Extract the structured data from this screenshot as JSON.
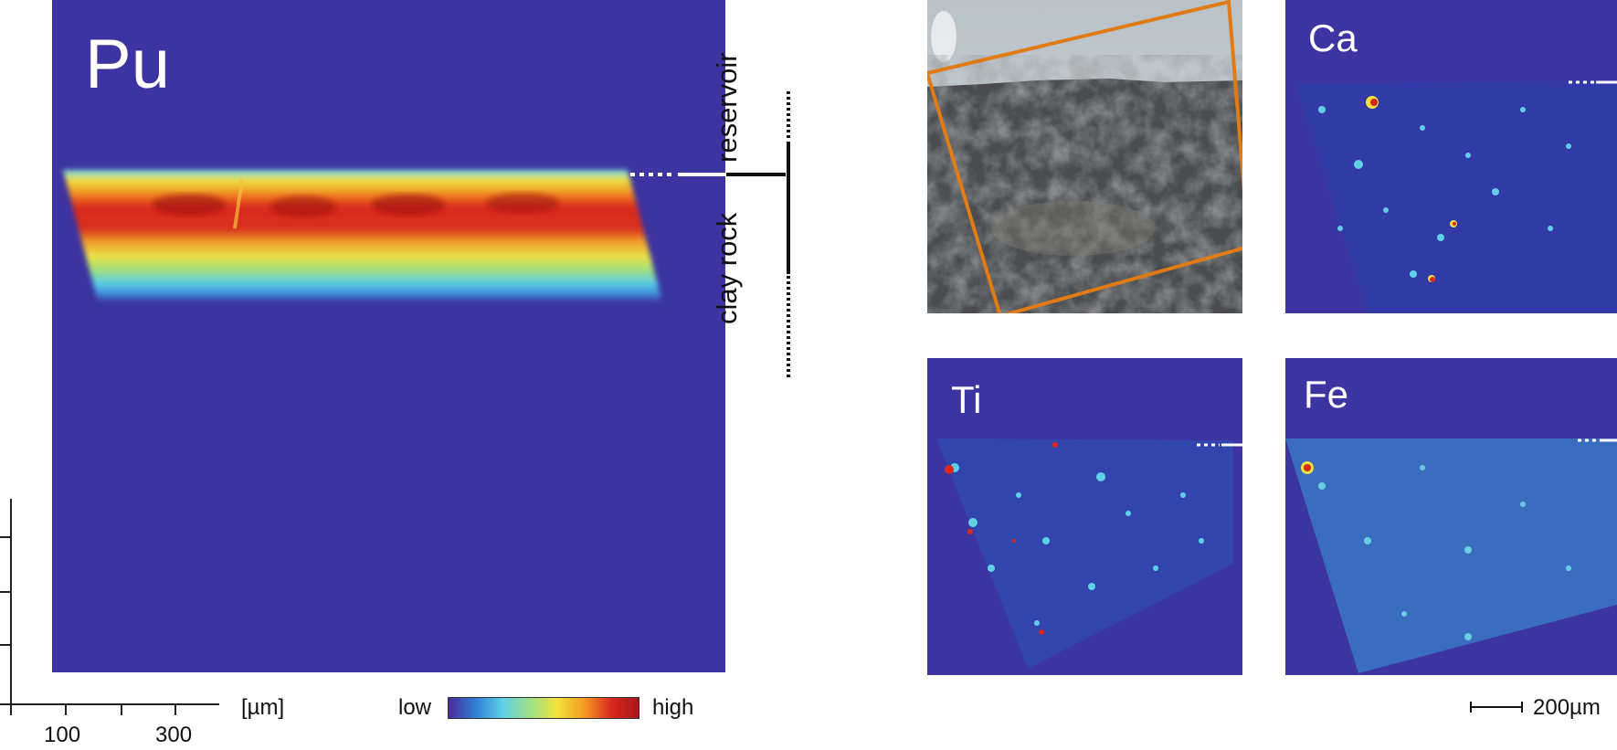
{
  "main_map": {
    "element": "Pu"
  },
  "interface_labels": {
    "top": "reservoir",
    "bottom": "clay rock"
  },
  "axis": {
    "ticks": [
      "100",
      "300"
    ],
    "unit": "[µm]"
  },
  "colorbar": {
    "low": "low",
    "high": "high",
    "colors": [
      "#4a2c9a",
      "#2f7fd6",
      "#5fd0e6",
      "#9ee08a",
      "#f1e23a",
      "#f39a22",
      "#d8281c",
      "#a6161a"
    ]
  },
  "panels": [
    {
      "element": "Ca"
    },
    {
      "element": "Ti"
    },
    {
      "element": "Fe"
    }
  ],
  "photo": {
    "frame_color": "#e07b16"
  },
  "scalebar": {
    "label": "200µm"
  },
  "colors": {
    "map_background": "#3c34a0"
  }
}
